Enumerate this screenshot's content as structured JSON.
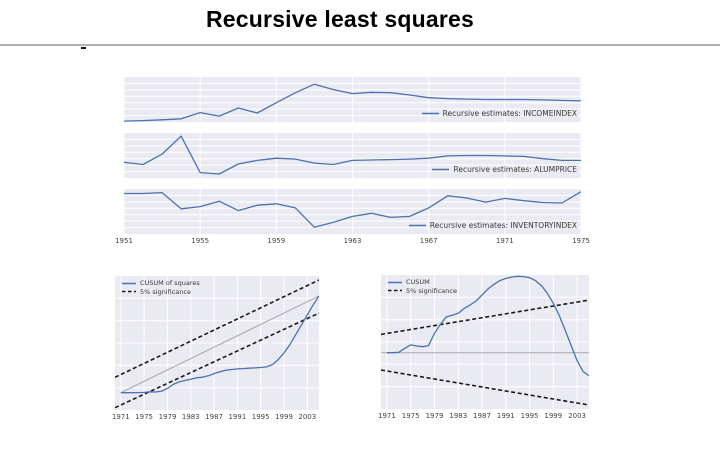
{
  "page": {
    "title": "Recursive least squares"
  },
  "colors": {
    "panel_bg": "#eaeaf2",
    "grid_white": "#ffffff",
    "line_blue": "#4c72b0",
    "dashed_black": "#1a1a1a",
    "reference_gray": "#b0b0b0",
    "tick_text": "#444444",
    "legend_text": "#3a3a3a",
    "divider_gray": "#b0b0b0"
  },
  "chart_data": [
    {
      "id": "recursive-estimates-incomeindex",
      "type": "line",
      "xlim": [
        1951,
        1975
      ],
      "ylim": [
        0,
        1
      ],
      "y_units": "unlabeled (normalized to panel height)",
      "grid": true,
      "x_ticks": [
        1951,
        1955,
        1959,
        1963,
        1967,
        1971,
        1975
      ],
      "show_tick_labels": false,
      "legend": {
        "position": "bottom-right",
        "entries": [
          {
            "label": "Recursive estimates: INCOMEINDEX",
            "style": "solid",
            "color": "#4c72b0"
          }
        ]
      },
      "series": [
        {
          "name": "Recursive estimates: INCOMEINDEX",
          "style": "solid",
          "color": "#4c72b0",
          "width": 1.3,
          "x": [
            1951,
            1952,
            1953,
            1954,
            1955,
            1956,
            1957,
            1958,
            1959,
            1960,
            1961,
            1962,
            1963,
            1964,
            1965,
            1966,
            1967,
            1968,
            1969,
            1970,
            1971,
            1972,
            1973,
            1974,
            1975
          ],
          "y": [
            0.02,
            0.03,
            0.05,
            0.07,
            0.21,
            0.13,
            0.31,
            0.2,
            0.43,
            0.65,
            0.84,
            0.72,
            0.63,
            0.66,
            0.65,
            0.6,
            0.54,
            0.52,
            0.51,
            0.5,
            0.5,
            0.5,
            0.49,
            0.48,
            0.47
          ]
        }
      ]
    },
    {
      "id": "recursive-estimates-alumprice",
      "type": "line",
      "xlim": [
        1951,
        1975
      ],
      "ylim": [
        0,
        1
      ],
      "y_units": "unlabeled (normalized to panel height)",
      "grid": true,
      "x_ticks": [
        1951,
        1955,
        1959,
        1963,
        1967,
        1971,
        1975
      ],
      "show_tick_labels": false,
      "legend": {
        "position": "bottom-right",
        "entries": [
          {
            "label": "Recursive estimates: ALUMPRICE",
            "style": "solid",
            "color": "#4c72b0"
          }
        ]
      },
      "series": [
        {
          "name": "Recursive estimates: ALUMPRICE",
          "style": "solid",
          "color": "#4c72b0",
          "width": 1.3,
          "x": [
            1951,
            1952,
            1953,
            1954,
            1955,
            1956,
            1957,
            1958,
            1959,
            1960,
            1961,
            1962,
            1963,
            1964,
            1965,
            1966,
            1967,
            1968,
            1969,
            1970,
            1971,
            1972,
            1973,
            1974,
            1975
          ],
          "y": [
            0.35,
            0.3,
            0.53,
            0.93,
            0.12,
            0.09,
            0.31,
            0.39,
            0.44,
            0.42,
            0.33,
            0.3,
            0.39,
            0.4,
            0.41,
            0.42,
            0.44,
            0.49,
            0.5,
            0.5,
            0.49,
            0.48,
            0.43,
            0.39,
            0.39
          ]
        }
      ]
    },
    {
      "id": "recursive-estimates-inventoryindex",
      "type": "line",
      "xlim": [
        1951,
        1975
      ],
      "ylim": [
        0,
        1
      ],
      "y_units": "unlabeled (normalized to panel height)",
      "grid": true,
      "x_ticks": [
        1951,
        1955,
        1959,
        1963,
        1967,
        1971,
        1975
      ],
      "show_tick_labels": true,
      "legend": {
        "position": "bottom-right",
        "entries": [
          {
            "label": "Recursive estimates: INVENTORYINDEX",
            "style": "solid",
            "color": "#4c72b0"
          }
        ]
      },
      "series": [
        {
          "name": "Recursive estimates: INVENTORYINDEX",
          "style": "solid",
          "color": "#4c72b0",
          "width": 1.3,
          "x": [
            1951,
            1952,
            1953,
            1954,
            1955,
            1956,
            1957,
            1958,
            1959,
            1960,
            1961,
            1962,
            1963,
            1964,
            1965,
            1966,
            1967,
            1968,
            1969,
            1970,
            1971,
            1972,
            1973,
            1974,
            1975
          ],
          "y": [
            0.9,
            0.9,
            0.92,
            0.56,
            0.61,
            0.73,
            0.52,
            0.64,
            0.67,
            0.58,
            0.15,
            0.26,
            0.39,
            0.46,
            0.37,
            0.39,
            0.58,
            0.85,
            0.8,
            0.71,
            0.79,
            0.74,
            0.7,
            0.69,
            0.94
          ]
        }
      ]
    },
    {
      "id": "cusum-of-squares",
      "type": "line",
      "xlim": [
        1970,
        2005
      ],
      "ylim": [
        0,
        1
      ],
      "y_units": "unlabeled (normalized to panel height)",
      "grid": true,
      "x_ticks": [
        1971,
        1975,
        1979,
        1983,
        1987,
        1991,
        1995,
        1999,
        2003
      ],
      "show_tick_labels": true,
      "legend": {
        "position": "top-left",
        "entries": [
          {
            "label": "CUSUM of squares",
            "style": "solid",
            "color": "#4c72b0"
          },
          {
            "label": "5% significance",
            "style": "dashed",
            "color": "#1a1a1a"
          }
        ]
      },
      "series": [
        {
          "name": "reference line",
          "style": "solid",
          "color": "#b0b0b0",
          "width": 1.2,
          "x": [
            1971,
            2005
          ],
          "y": [
            0.129,
            0.851
          ]
        },
        {
          "name": "5% significance upper bound",
          "style": "dashed",
          "color": "#1a1a1a",
          "width": 1.6,
          "x": [
            1970,
            2005
          ],
          "y": [
            0.244,
            0.97
          ]
        },
        {
          "name": "5% significance lower bound",
          "style": "dashed",
          "color": "#1a1a1a",
          "width": 1.6,
          "x": [
            1970,
            2005
          ],
          "y": [
            0.017,
            0.723
          ]
        },
        {
          "name": "CUSUM of squares",
          "style": "solid",
          "color": "#4c72b0",
          "width": 1.3,
          "x": [
            1971,
            1972,
            1973,
            1974,
            1975,
            1976,
            1977,
            1978,
            1979,
            1980,
            1981,
            1982,
            1983,
            1984,
            1985,
            1986,
            1987,
            1988,
            1989,
            1990,
            1991,
            1992,
            1993,
            1994,
            1995,
            1996,
            1997,
            1998,
            1999,
            2000,
            2001,
            2002,
            2003,
            2004,
            2005
          ],
          "y": [
            0.129,
            0.129,
            0.129,
            0.13,
            0.131,
            0.136,
            0.134,
            0.141,
            0.161,
            0.191,
            0.21,
            0.22,
            0.23,
            0.24,
            0.245,
            0.255,
            0.272,
            0.285,
            0.297,
            0.302,
            0.307,
            0.309,
            0.312,
            0.314,
            0.317,
            0.322,
            0.339,
            0.376,
            0.426,
            0.488,
            0.562,
            0.636,
            0.71,
            0.785,
            0.851
          ]
        }
      ]
    },
    {
      "id": "cusum",
      "type": "line",
      "xlim": [
        1970,
        2005
      ],
      "ylim": [
        0,
        1
      ],
      "y_units": "unlabeled (normalized to panel height)",
      "grid": true,
      "x_ticks": [
        1971,
        1975,
        1979,
        1983,
        1987,
        1991,
        1995,
        1999,
        2003
      ],
      "show_tick_labels": true,
      "legend": {
        "position": "top-left",
        "entries": [
          {
            "label": "CUSUM",
            "style": "solid",
            "color": "#4c72b0"
          },
          {
            "label": "5% significance",
            "style": "dashed",
            "color": "#1a1a1a"
          }
        ]
      },
      "series": [
        {
          "name": "zero line",
          "style": "solid",
          "color": "#b0b0b0",
          "width": 1.2,
          "x": [
            1970,
            2005
          ],
          "y": [
            0.42,
            0.42
          ]
        },
        {
          "name": "5% significance upper bound",
          "style": "dashed",
          "color": "#1a1a1a",
          "width": 1.6,
          "x": [
            1970,
            2005
          ],
          "y": [
            0.557,
            0.813
          ]
        },
        {
          "name": "5% significance lower bound",
          "style": "dashed",
          "color": "#1a1a1a",
          "width": 1.6,
          "x": [
            1970,
            2005
          ],
          "y": [
            0.291,
            0.03
          ]
        },
        {
          "name": "CUSUM",
          "style": "solid",
          "color": "#4c72b0",
          "width": 1.3,
          "x": [
            1971,
            1972,
            1973,
            1974,
            1975,
            1976,
            1977,
            1978,
            1979,
            1980,
            1981,
            1982,
            1983,
            1984,
            1985,
            1986,
            1987,
            1988,
            1989,
            1990,
            1991,
            1992,
            1993,
            1994,
            1995,
            1996,
            1997,
            1998,
            1999,
            2000,
            2001,
            2002,
            2003,
            2004,
            2005
          ],
          "y": [
            0.42,
            0.42,
            0.423,
            0.453,
            0.478,
            0.47,
            0.465,
            0.473,
            0.565,
            0.632,
            0.689,
            0.7,
            0.715,
            0.751,
            0.776,
            0.806,
            0.851,
            0.896,
            0.93,
            0.958,
            0.975,
            0.985,
            0.99,
            0.988,
            0.98,
            0.958,
            0.92,
            0.863,
            0.789,
            0.697,
            0.587,
            0.473,
            0.361,
            0.279,
            0.249
          ]
        }
      ]
    }
  ]
}
